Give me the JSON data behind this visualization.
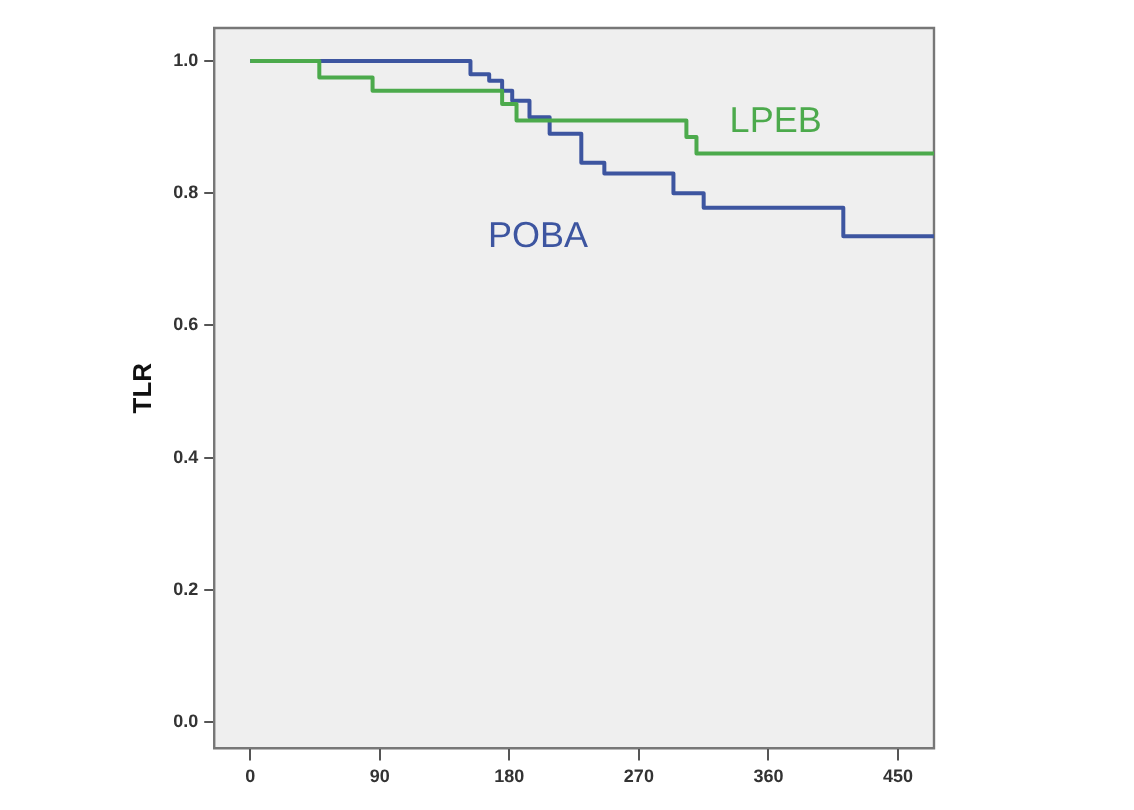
{
  "chart_data": {
    "type": "step",
    "ylabel": "TLR",
    "xlim": [
      -25,
      475
    ],
    "xticks": [
      0,
      90,
      180,
      270,
      360,
      450
    ],
    "ylim": [
      -0.04,
      1.05
    ],
    "yticks": [
      {
        "value": 0,
        "label": "0.0"
      },
      {
        "value": 0.2,
        "label": "0.2"
      },
      {
        "value": 0.4,
        "label": "0.4"
      },
      {
        "value": 0.6,
        "label": "0.6"
      },
      {
        "value": 0.8,
        "label": "0.8"
      },
      {
        "value": 1,
        "label": "1.0"
      }
    ],
    "grid": false,
    "legend": false,
    "marker": "none",
    "line_style": "solid",
    "series": [
      {
        "name": "LPEB",
        "color": "#4caa4c",
        "x": [
          0,
          48,
          85,
          175,
          185,
          303,
          310,
          475
        ],
        "values": [
          1.0,
          0.975,
          0.955,
          0.935,
          0.91,
          0.885,
          0.86,
          0.86
        ]
      },
      {
        "name": "POBA",
        "color": "#3d55a0",
        "x": [
          0,
          153,
          166,
          175,
          182,
          194,
          208,
          230,
          246,
          294,
          315,
          412,
          475
        ],
        "values": [
          1.0,
          0.98,
          0.97,
          0.955,
          0.94,
          0.915,
          0.89,
          0.846,
          0.83,
          0.8,
          0.778,
          0.735,
          0.735
        ]
      }
    ]
  }
}
